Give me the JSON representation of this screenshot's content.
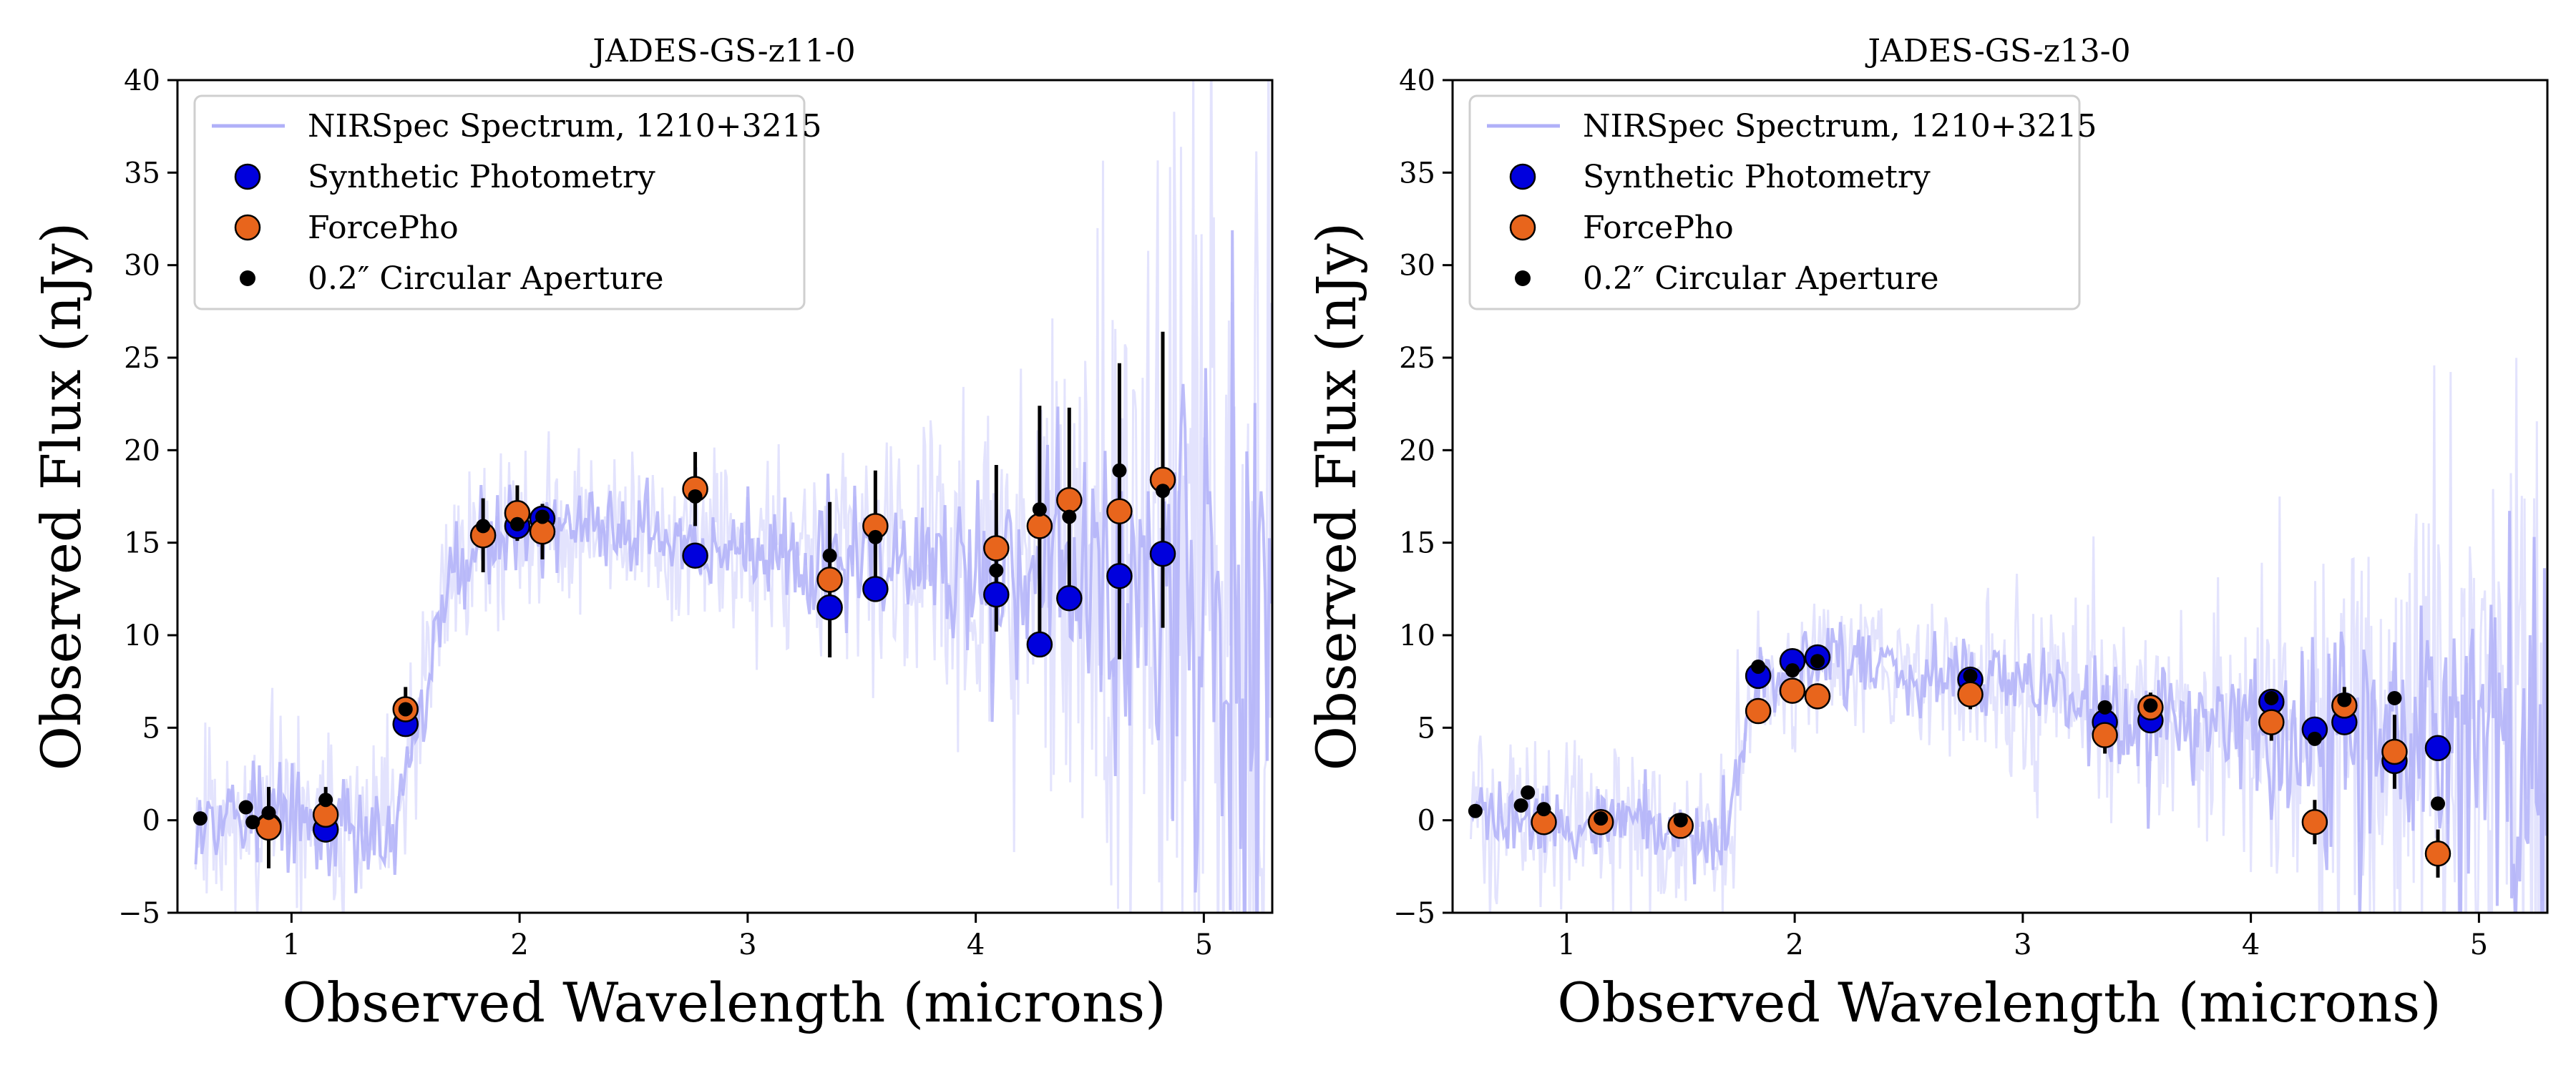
{
  "chart_data": [
    {
      "type": "scatter",
      "title": "JADES-GS-z11-0",
      "xlabel": "Observed Wavelength (microns)",
      "ylabel": "Observed Flux (nJy)",
      "xlim": [
        0.5,
        5.3
      ],
      "ylim": [
        -5,
        40
      ],
      "xticks": [
        1,
        2,
        3,
        4,
        5
      ],
      "yticks": [
        -5,
        0,
        5,
        10,
        15,
        20,
        25,
        30,
        35,
        40
      ],
      "xtick_labels": [
        "1",
        "2",
        "3",
        "4",
        "5"
      ],
      "ytick_labels": [
        "−5",
        "0",
        "5",
        "10",
        "15",
        "20",
        "25",
        "30",
        "35",
        "40"
      ],
      "legend": {
        "position": "top-left",
        "entries": [
          "NIRSpec Spectrum, 1210+3215",
          "Synthetic Photometry",
          "ForcePho",
          "0.2″ Circular Aperture"
        ]
      },
      "spectrum": {
        "name": "NIRSpec Spectrum, 1210+3215",
        "color": "#b0b0f8",
        "break_um": 1.55,
        "knots": [
          [
            0.6,
            0.5
          ],
          [
            1.0,
            0.2
          ],
          [
            1.45,
            -1.0
          ],
          [
            1.55,
            4.5
          ],
          [
            1.7,
            14
          ],
          [
            1.9,
            15.5
          ],
          [
            2.2,
            16
          ],
          [
            2.6,
            15
          ],
          [
            2.8,
            15
          ],
          [
            3.2,
            14
          ],
          [
            3.6,
            14
          ],
          [
            4.0,
            13
          ],
          [
            4.5,
            13
          ],
          [
            5.0,
            12
          ],
          [
            5.3,
            12
          ]
        ],
        "noise": [
          [
            0.6,
            2.5
          ],
          [
            1.5,
            2.5
          ],
          [
            2.5,
            2.0
          ],
          [
            3.5,
            3.0
          ],
          [
            4.0,
            4.5
          ],
          [
            4.5,
            8.0
          ],
          [
            5.0,
            14.0
          ],
          [
            5.3,
            18.0
          ]
        ]
      },
      "series": [
        {
          "name": "Synthetic Photometry",
          "color": "#0000dd",
          "x": [
            0.9,
            1.15,
            1.5,
            1.99,
            2.1,
            2.77,
            3.36,
            3.56,
            4.09,
            4.28,
            4.41,
            4.63,
            4.82
          ],
          "y": [
            -0.3,
            -0.5,
            5.2,
            15.9,
            16.3,
            14.3,
            11.5,
            12.5,
            12.2,
            9.5,
            12.0,
            13.2,
            14.4
          ]
        },
        {
          "name": "ForcePho",
          "color": "#e8651c",
          "x": [
            0.9,
            1.15,
            1.5,
            1.84,
            1.99,
            2.1,
            2.77,
            3.36,
            3.56,
            4.09,
            4.28,
            4.41,
            4.63,
            4.82
          ],
          "y": [
            -0.4,
            0.3,
            6.0,
            15.4,
            16.6,
            15.6,
            17.9,
            13.0,
            15.9,
            14.7,
            15.9,
            17.3,
            16.7,
            18.4
          ],
          "yerr": [
            2.2,
            1.5,
            1.2,
            2.0,
            1.5,
            1.5,
            2.0,
            4.2,
            3.0,
            4.5,
            6.5,
            5.0,
            8.0,
            8.0
          ]
        },
        {
          "name": "0.2″ Circular Aperture",
          "color": "#000000",
          "x": [
            0.6,
            0.8,
            0.83,
            0.9,
            1.15,
            1.5,
            1.84,
            1.99,
            2.1,
            2.77,
            3.36,
            3.56,
            4.09,
            4.28,
            4.41,
            4.63,
            4.82
          ],
          "y": [
            0.1,
            0.7,
            -0.1,
            0.4,
            1.1,
            6.0,
            15.9,
            16.0,
            16.4,
            17.5,
            14.3,
            15.3,
            13.5,
            16.8,
            16.4,
            18.9,
            17.8
          ]
        }
      ]
    },
    {
      "type": "scatter",
      "title": "JADES-GS-z13-0",
      "xlabel": "Observed Wavelength (microns)",
      "ylabel": "Observed Flux (nJy)",
      "xlim": [
        0.5,
        5.3
      ],
      "ylim": [
        -5,
        40
      ],
      "xticks": [
        1,
        2,
        3,
        4,
        5
      ],
      "yticks": [
        -5,
        0,
        5,
        10,
        15,
        20,
        25,
        30,
        35,
        40
      ],
      "xtick_labels": [
        "1",
        "2",
        "3",
        "4",
        "5"
      ],
      "ytick_labels": [
        "−5",
        "0",
        "5",
        "10",
        "15",
        "20",
        "25",
        "30",
        "35",
        "40"
      ],
      "legend": {
        "position": "top-left",
        "entries": [
          "NIRSpec Spectrum, 1210+3215",
          "Synthetic Photometry",
          "ForcePho",
          "0.2″ Circular Aperture"
        ]
      },
      "spectrum": {
        "name": "NIRSpec Spectrum, 1210+3215",
        "color": "#b0b0f8",
        "break_um": 1.73,
        "knots": [
          [
            0.6,
            0.5
          ],
          [
            1.0,
            0.0
          ],
          [
            1.5,
            -0.5
          ],
          [
            1.7,
            -1.0
          ],
          [
            1.75,
            3.0
          ],
          [
            1.85,
            7.5
          ],
          [
            2.1,
            8.5
          ],
          [
            2.5,
            8.0
          ],
          [
            3.0,
            7.0
          ],
          [
            3.5,
            5.5
          ],
          [
            4.0,
            5.0
          ],
          [
            4.5,
            5.0
          ],
          [
            5.0,
            5.0
          ],
          [
            5.3,
            5.0
          ]
        ],
        "noise": [
          [
            0.6,
            2.0
          ],
          [
            1.5,
            2.0
          ],
          [
            2.5,
            2.0
          ],
          [
            3.5,
            2.5
          ],
          [
            4.0,
            4.0
          ],
          [
            4.5,
            6.0
          ],
          [
            5.0,
            9.0
          ],
          [
            5.3,
            12.0
          ]
        ]
      },
      "series": [
        {
          "name": "Synthetic Photometry",
          "color": "#0000dd",
          "x": [
            1.84,
            1.99,
            2.1,
            2.77,
            3.36,
            3.56,
            4.09,
            4.28,
            4.41,
            4.63,
            4.82
          ],
          "y": [
            7.8,
            8.6,
            8.8,
            7.6,
            5.3,
            5.4,
            6.4,
            4.9,
            5.3,
            3.2,
            3.9
          ]
        },
        {
          "name": "ForcePho",
          "color": "#e8651c",
          "x": [
            0.9,
            1.15,
            1.5,
            1.84,
            1.99,
            2.1,
            2.77,
            3.36,
            3.56,
            4.09,
            4.28,
            4.41,
            4.63,
            4.82
          ],
          "y": [
            -0.1,
            -0.1,
            -0.3,
            5.9,
            7.0,
            6.7,
            6.8,
            4.6,
            6.1,
            5.3,
            -0.1,
            6.2,
            3.7,
            -1.8
          ],
          "yerr": [
            0.6,
            0.6,
            0.6,
            0.5,
            0.5,
            0.5,
            0.8,
            1.0,
            0.8,
            1.0,
            1.2,
            1.0,
            2.0,
            1.3
          ]
        },
        {
          "name": "0.2″ Circular Aperture",
          "color": "#000000",
          "x": [
            0.6,
            0.8,
            0.83,
            0.9,
            1.15,
            1.5,
            1.84,
            1.99,
            2.1,
            2.77,
            3.36,
            3.56,
            4.09,
            4.28,
            4.41,
            4.63,
            4.82
          ],
          "y": [
            0.5,
            0.8,
            1.5,
            0.6,
            0.1,
            0.0,
            8.3,
            8.1,
            8.6,
            7.8,
            6.1,
            6.2,
            6.6,
            4.4,
            6.5,
            6.6,
            0.9
          ]
        }
      ]
    }
  ]
}
